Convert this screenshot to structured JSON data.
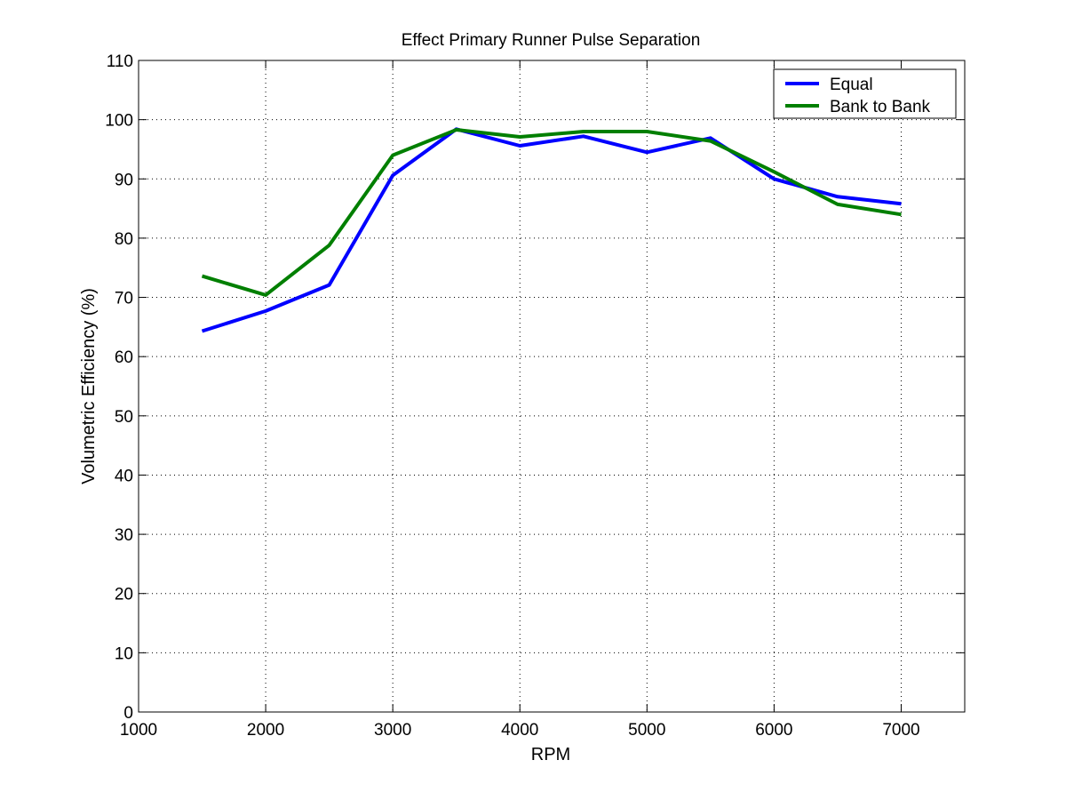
{
  "chart_data": {
    "type": "line",
    "title": "Effect Primary Runner Pulse Separation",
    "xlabel": "RPM",
    "ylabel": "Volumetric Efficiency (%)",
    "xlim": [
      1000,
      7500
    ],
    "ylim": [
      0,
      110
    ],
    "xticks": [
      1000,
      2000,
      3000,
      4000,
      5000,
      6000,
      7000
    ],
    "yticks": [
      0,
      10,
      20,
      30,
      40,
      50,
      60,
      70,
      80,
      90,
      100,
      110
    ],
    "grid": true,
    "legend_position": "top-right",
    "x": [
      1500,
      2000,
      2500,
      3000,
      3500,
      4000,
      4500,
      5000,
      5500,
      6000,
      6500,
      7000
    ],
    "series": [
      {
        "name": "Equal",
        "color": "#0000ff",
        "values": [
          64.3,
          67.7,
          72.1,
          90.6,
          98.4,
          95.6,
          97.2,
          94.5,
          96.9,
          90.0,
          87.0,
          85.8
        ]
      },
      {
        "name": "Bank to Bank",
        "color": "#007f00",
        "values": [
          73.6,
          70.4,
          78.8,
          94.0,
          98.3,
          97.1,
          98.0,
          98.0,
          96.4,
          91.2,
          85.7,
          84.0
        ]
      }
    ]
  }
}
